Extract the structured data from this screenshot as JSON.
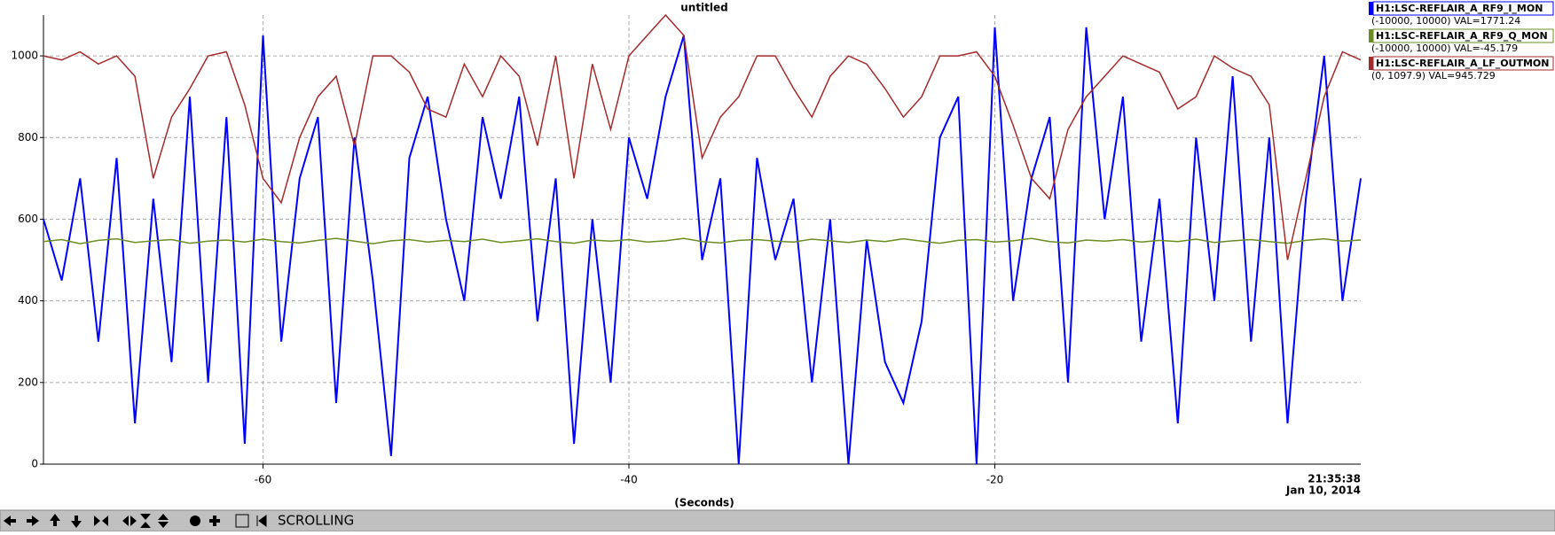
{
  "chart_data": {
    "type": "line",
    "title": "untitled",
    "xlabel": "(Seconds)",
    "time_label": "21:35:38",
    "date_label": "Jan 10, 2014",
    "x": [
      -72,
      -71,
      -70,
      -69,
      -68,
      -67,
      -66,
      -65,
      -64,
      -63,
      -62,
      -61,
      -60,
      -59,
      -58,
      -57,
      -56,
      -55,
      -54,
      -53,
      -52,
      -51,
      -50,
      -49,
      -48,
      -47,
      -46,
      -45,
      -44,
      -43,
      -42,
      -41,
      -40,
      -39,
      -38,
      -37,
      -36,
      -35,
      -34,
      -33,
      -32,
      -31,
      -30,
      -29,
      -28,
      -27,
      -26,
      -25,
      -24,
      -23,
      -22,
      -21,
      -20,
      -19,
      -18,
      -17,
      -16,
      -15,
      -14,
      -13,
      -12,
      -11,
      -10,
      -9,
      -8,
      -7,
      -6,
      -5,
      -4,
      -3,
      -2,
      -1,
      0
    ],
    "xlim": [
      -72,
      0
    ],
    "xticks": [
      -60,
      -40,
      -20
    ],
    "ylim": [
      0,
      1100
    ],
    "yticks": [
      0,
      200,
      400,
      600,
      800,
      1000
    ],
    "grid": true,
    "series": [
      {
        "name": "H1:LSC-REFLAIR_A_RF9_I_MON",
        "range_label": "(-10000, 10000) VAL=1771.24",
        "color": "#0000ff",
        "values": [
          600,
          450,
          700,
          300,
          750,
          100,
          650,
          250,
          900,
          200,
          850,
          50,
          1050,
          300,
          700,
          850,
          150,
          800,
          450,
          20,
          750,
          900,
          600,
          400,
          850,
          650,
          900,
          350,
          700,
          50,
          600,
          200,
          800,
          650,
          900,
          1050,
          500,
          700,
          0,
          750,
          500,
          650,
          200,
          600,
          0,
          550,
          250,
          150,
          350,
          800,
          900,
          0,
          1070,
          400,
          700,
          850,
          200,
          1070,
          600,
          900,
          300,
          650,
          100,
          800,
          400,
          950,
          300,
          800,
          100,
          650,
          1000,
          400,
          700
        ]
      },
      {
        "name": "H1:LSC-REFLAIR_A_RF9_Q_MON",
        "range_label": "(-10000, 10000) VAL=-45.179",
        "color": "#6b8e23",
        "values": [
          545,
          550,
          540,
          548,
          552,
          543,
          547,
          550,
          541,
          546,
          549,
          544,
          551,
          545,
          542,
          548,
          553,
          546,
          540,
          547,
          550,
          544,
          548,
          545,
          551,
          543,
          547,
          552,
          545,
          541,
          549,
          546,
          550,
          544,
          547,
          553,
          545,
          542,
          548,
          550,
          546,
          544,
          551,
          547,
          543,
          549,
          545,
          552,
          546,
          541,
          548,
          550,
          544,
          547,
          553,
          545,
          542,
          549,
          546,
          550,
          544,
          548,
          545,
          551,
          543,
          547,
          550,
          545,
          541,
          548,
          552,
          546,
          549
        ]
      },
      {
        "name": "H1:LSC-REFLAIR_A_LF_OUTMON",
        "range_label": "(0, 1097.9) VAL=945.729",
        "color": "#a52a2a",
        "values": [
          1000,
          990,
          1010,
          980,
          1000,
          950,
          700,
          850,
          920,
          1000,
          1010,
          880,
          700,
          640,
          800,
          900,
          950,
          780,
          1000,
          1000,
          960,
          870,
          850,
          980,
          900,
          1000,
          950,
          780,
          1000,
          700,
          980,
          820,
          1000,
          1050,
          1100,
          1050,
          750,
          850,
          900,
          1000,
          1000,
          920,
          850,
          950,
          1000,
          980,
          920,
          850,
          900,
          1000,
          1000,
          1010,
          950,
          830,
          700,
          650,
          820,
          900,
          950,
          1000,
          980,
          960,
          870,
          900,
          1000,
          970,
          950,
          880,
          500,
          700,
          900,
          1010,
          990
        ]
      }
    ]
  },
  "toolbar": {
    "status": "SCROLLING"
  }
}
